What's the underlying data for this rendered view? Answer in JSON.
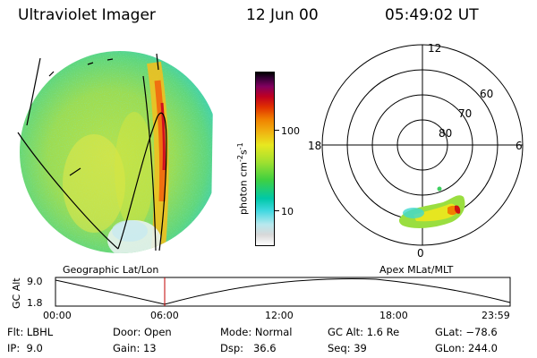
{
  "header": {
    "instrument": "Ultraviolet Imager",
    "date": "12 Jun 00",
    "time": "05:49:02 UT"
  },
  "colorbar": {
    "label_main": "photon cm",
    "label_exp1": "-2",
    "label_mid": "s",
    "label_exp2": "-1",
    "ticks": [
      "100",
      "10"
    ],
    "colors": [
      "#ffffff",
      "#e0e0e0",
      "#b8e8ee",
      "#40d8e0",
      "#00c0a0",
      "#30d040",
      "#90e030",
      "#e8e820",
      "#f0b010",
      "#f08000",
      "#e03000",
      "#c00020",
      "#800060",
      "#400040",
      "#000000"
    ]
  },
  "polar_plot": {
    "mlt_labels": {
      "top": "12",
      "left": "18",
      "right": "6",
      "bottom": "0"
    },
    "lat_labels": [
      "60",
      "70",
      "80"
    ]
  },
  "panel_labels": {
    "geo": "Geographic Lat/Lon",
    "apex": "Apex MLat/MLT"
  },
  "altitude_plot": {
    "ylabel": "GC Alt",
    "yticks": [
      "9.0",
      "1.8"
    ],
    "xticks": [
      "00:00",
      "06:00",
      "12:00",
      "18:00",
      "23:59"
    ],
    "marker_color": "#c00000"
  },
  "info": {
    "row1": {
      "flt": "Flt: LBHL",
      "door": "Door: Open",
      "mode": "Mode: Normal",
      "gcalt": "GC Alt: 1.6 Re",
      "glat": "GLat: −78.6"
    },
    "row2": {
      "ip": "IP:  9.0",
      "gain": "Gain: 13",
      "dsp": "Dsp:   36.6",
      "seq": "Seq: 39",
      "glon": "GLon: 244.0"
    }
  }
}
